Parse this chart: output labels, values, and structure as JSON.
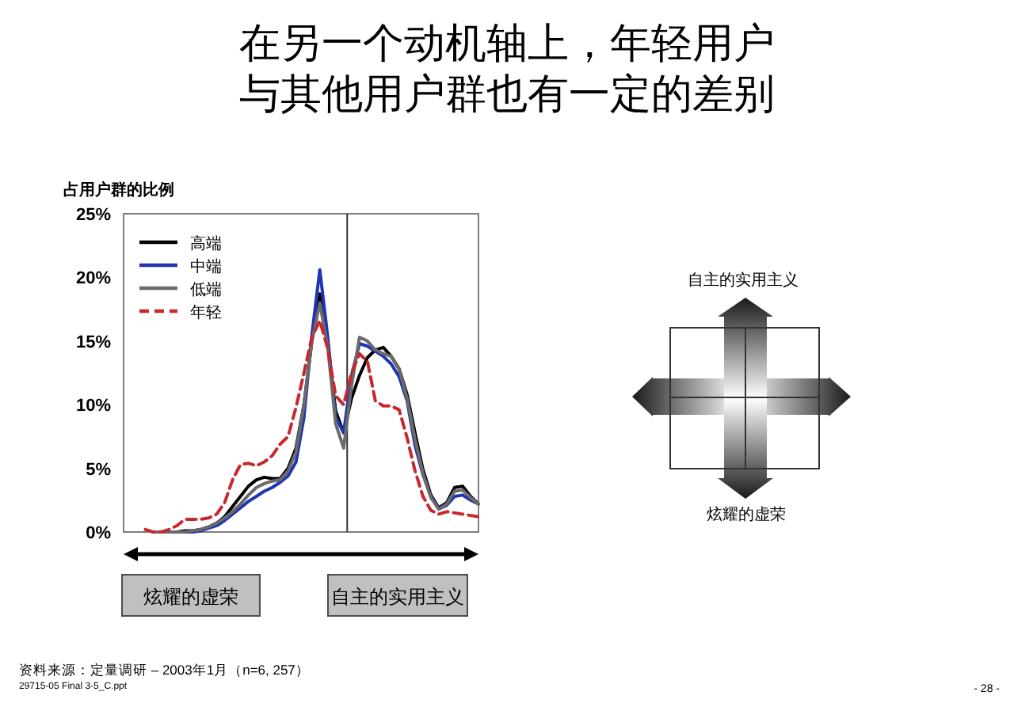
{
  "chart_data": {
    "type": "line",
    "title": "在另一个动机轴上，年轻用户与其他用户群也有一定的差别",
    "ylabel": "占用户群的比例",
    "categories": [
      null,
      null,
      null,
      null,
      null,
      null,
      null,
      null,
      null,
      null,
      null,
      null,
      null,
      null,
      null,
      null,
      null,
      null,
      null,
      null,
      null,
      null,
      null,
      null,
      null,
      null,
      null,
      null,
      null,
      null,
      null,
      null,
      null,
      null,
      null,
      null,
      null,
      null,
      null,
      null,
      null,
      null,
      null,
      null
    ],
    "series": [
      {
        "name": "高端",
        "color": "#000000",
        "values": [
          null,
          null,
          0.0,
          0.0,
          0.0,
          0.0,
          0.1,
          0.1,
          0.2,
          0.4,
          0.7,
          1.2,
          2.0,
          2.8,
          3.6,
          4.1,
          4.3,
          4.2,
          4.2,
          5.0,
          6.6,
          10.0,
          15.0,
          18.7,
          14.8,
          9.5,
          7.8,
          10.5,
          12.3,
          13.7,
          14.3,
          14.5,
          13.8,
          12.8,
          10.8,
          7.8,
          4.9,
          2.9,
          1.9,
          2.3,
          3.5,
          3.6,
          2.8,
          2.2
        ]
      },
      {
        "name": "中端",
        "color": "#1f35b4",
        "values": [
          null,
          null,
          null,
          null,
          null,
          0.0,
          0.0,
          0.0,
          0.1,
          0.3,
          0.5,
          0.9,
          1.4,
          1.9,
          2.4,
          2.8,
          3.2,
          3.5,
          3.9,
          4.4,
          5.5,
          9.0,
          15.5,
          20.6,
          15.3,
          9.0,
          7.8,
          12.3,
          14.8,
          14.6,
          14.2,
          13.8,
          13.2,
          12.2,
          10.3,
          6.8,
          4.5,
          2.8,
          1.8,
          2.1,
          2.8,
          2.9,
          2.5,
          2.2
        ]
      },
      {
        "name": "低端",
        "color": "#6a6a6a",
        "values": [
          null,
          null,
          0.0,
          0.0,
          0.0,
          0.0,
          0.0,
          0.1,
          0.2,
          0.4,
          0.7,
          1.1,
          1.6,
          2.2,
          2.9,
          3.5,
          3.8,
          4.0,
          4.1,
          4.8,
          6.3,
          10.0,
          15.0,
          18.0,
          14.5,
          8.5,
          6.6,
          11.5,
          15.3,
          15.0,
          14.3,
          14.0,
          13.8,
          12.8,
          10.5,
          7.3,
          4.6,
          2.7,
          1.8,
          2.2,
          3.2,
          3.3,
          2.7,
          2.2
        ]
      },
      {
        "name": "年轻",
        "color": "#c8282d",
        "line_style": "dashed",
        "values": [
          null,
          0.2,
          0.0,
          0.0,
          0.2,
          0.5,
          1.0,
          1.0,
          1.0,
          1.1,
          1.4,
          2.3,
          4.1,
          5.3,
          5.4,
          5.2,
          5.5,
          6.0,
          6.9,
          7.5,
          9.8,
          12.5,
          15.3,
          16.6,
          14.4,
          10.7,
          10.0,
          12.5,
          14.0,
          13.4,
          10.3,
          9.9,
          9.9,
          9.6,
          7.4,
          4.8,
          2.8,
          1.7,
          1.4,
          1.6,
          1.5,
          1.4,
          1.3,
          1.2
        ]
      }
    ],
    "ylim": [
      0,
      25
    ],
    "yticks": [
      {
        "value": 0,
        "label": "0%"
      },
      {
        "value": 5,
        "label": "5%"
      },
      {
        "value": 10,
        "label": "10%"
      },
      {
        "value": 15,
        "label": "15%"
      },
      {
        "value": 20,
        "label": "20%"
      },
      {
        "value": 25,
        "label": "25%"
      }
    ],
    "legend": "top left",
    "annotations": [
      "炫耀的虚荣",
      "自主的实用主义",
      "自主的实用主义",
      "炫耀的虚荣",
      "资料来源：定量调研 – 2003年1月（n=6, 257）",
      "29715-05 Final 3-5_C.ppt",
      "- 28 -"
    ]
  }
}
